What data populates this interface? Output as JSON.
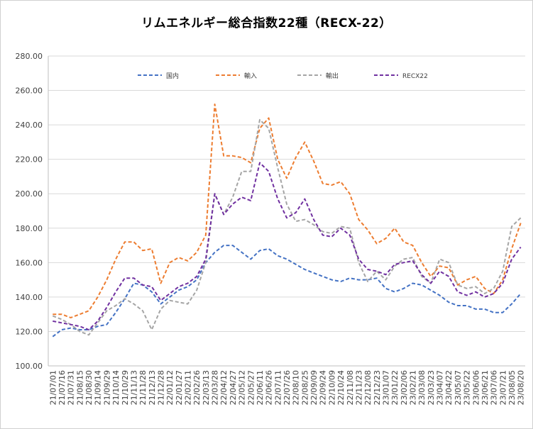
{
  "chart_data": {
    "type": "line",
    "title": "リムエネルギー総合指数22種（RECX-22）",
    "xlabel": "",
    "ylabel": "",
    "ylim": [
      100,
      280
    ],
    "y_ticks": [
      "100.00",
      "120.00",
      "140.00",
      "160.00",
      "180.00",
      "200.00",
      "220.00",
      "240.00",
      "260.00",
      "280.00"
    ],
    "grid": true,
    "legend_position": "top",
    "categories": [
      "21/07/01",
      "21/07/16",
      "21/07/31",
      "21/08/15",
      "21/08/30",
      "21/09/14",
      "21/09/29",
      "21/10/14",
      "21/10/29",
      "21/11/13",
      "21/11/28",
      "21/12/13",
      "21/12/28",
      "22/01/12",
      "22/01/27",
      "22/02/11",
      "22/02/26",
      "22/03/13",
      "22/03/28",
      "22/04/12",
      "22/04/27",
      "22/05/12",
      "22/05/27",
      "22/06/11",
      "22/06/26",
      "22/07/11",
      "22/07/26",
      "22/08/10",
      "22/08/25",
      "22/09/09",
      "22/09/24",
      "22/10/09",
      "22/10/24",
      "22/11/08",
      "22/11/23",
      "22/12/08",
      "22/12/23",
      "23/01/07",
      "23/01/22",
      "23/02/06",
      "23/02/21",
      "23/03/08",
      "23/03/23",
      "23/04/07",
      "23/04/22",
      "23/05/07",
      "23/05/22",
      "23/06/06",
      "23/06/21",
      "23/07/06",
      "23/07/21",
      "23/08/05",
      "23/08/20"
    ],
    "series": [
      {
        "name": "国内",
        "color": "#4472C4",
        "values": [
          117,
          121,
          122,
          121,
          121,
          123,
          124,
          131,
          139,
          148,
          147,
          143,
          136,
          140,
          144,
          146,
          150,
          160,
          166,
          170,
          170,
          166,
          162,
          167,
          168,
          164,
          162,
          159,
          156,
          154,
          152,
          150,
          149,
          151,
          150,
          150,
          151,
          145,
          143,
          145,
          148,
          147,
          144,
          141,
          137,
          135,
          135,
          133,
          133,
          131,
          131,
          136,
          142
        ]
      },
      {
        "name": "輸入",
        "color": "#ED7D31",
        "values": [
          130,
          130,
          128,
          130,
          132,
          140,
          150,
          162,
          172,
          172,
          167,
          168,
          148,
          160,
          163,
          161,
          166,
          176,
          252,
          222,
          222,
          221,
          218,
          238,
          244,
          220,
          209,
          221,
          230,
          219,
          206,
          205,
          207,
          200,
          185,
          179,
          171,
          174,
          180,
          172,
          170,
          160,
          152,
          158,
          157,
          147,
          150,
          152,
          145,
          142,
          150,
          168,
          183
        ]
      },
      {
        "name": "輸出",
        "color": "#A5A5A5",
        "values": [
          129,
          127,
          124,
          120,
          118,
          125,
          132,
          135,
          139,
          136,
          132,
          121,
          133,
          138,
          137,
          136,
          144,
          160,
          200,
          188,
          198,
          213,
          213,
          243,
          238,
          215,
          194,
          184,
          185,
          182,
          178,
          177,
          181,
          180,
          160,
          149,
          155,
          150,
          158,
          162,
          163,
          152,
          148,
          162,
          160,
          147,
          145,
          146,
          142,
          145,
          155,
          181,
          186
        ]
      },
      {
        "name": "RECX22",
        "color": "#7030A0",
        "values": [
          126,
          125,
          124,
          123,
          121,
          126,
          134,
          143,
          151,
          151,
          147,
          146,
          138,
          142,
          146,
          148,
          152,
          162,
          200,
          188,
          194,
          198,
          196,
          218,
          213,
          197,
          186,
          189,
          197,
          185,
          176,
          175,
          180,
          176,
          162,
          156,
          155,
          153,
          159,
          160,
          161,
          153,
          148,
          155,
          152,
          143,
          141,
          143,
          140,
          142,
          148,
          162,
          169
        ]
      }
    ]
  }
}
